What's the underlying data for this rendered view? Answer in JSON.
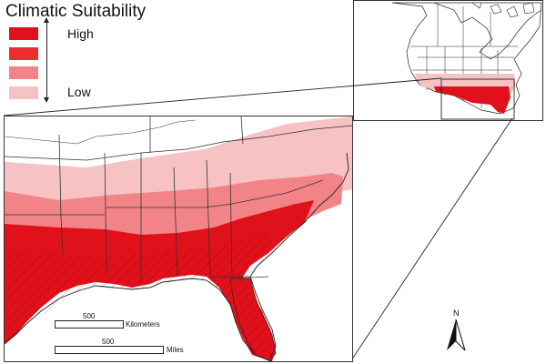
{
  "legend": {
    "title": "Climatic Suitability",
    "high_label": "High",
    "low_label": "Low",
    "classes": [
      {
        "level": 4,
        "color": "#e0111b"
      },
      {
        "level": 3,
        "color": "#ed2d2f"
      },
      {
        "level": 2,
        "color": "#f28487"
      },
      {
        "level": 1,
        "color": "#f7c2c3"
      }
    ]
  },
  "scale_bar": {
    "kilometers": {
      "value": "500",
      "unit": "Kilometers"
    },
    "miles": {
      "value": "500",
      "unit": "Miles"
    }
  },
  "north_arrow": {
    "label": "N"
  },
  "inset_map": {
    "description_icon": "north-america-inset-map"
  },
  "colors": {
    "very_high": "#d80f1a",
    "high": "#e74a4e",
    "moderate": "#f29ca0",
    "low": "#f8c8ca",
    "background": "#ffffff",
    "border": "#333333"
  }
}
